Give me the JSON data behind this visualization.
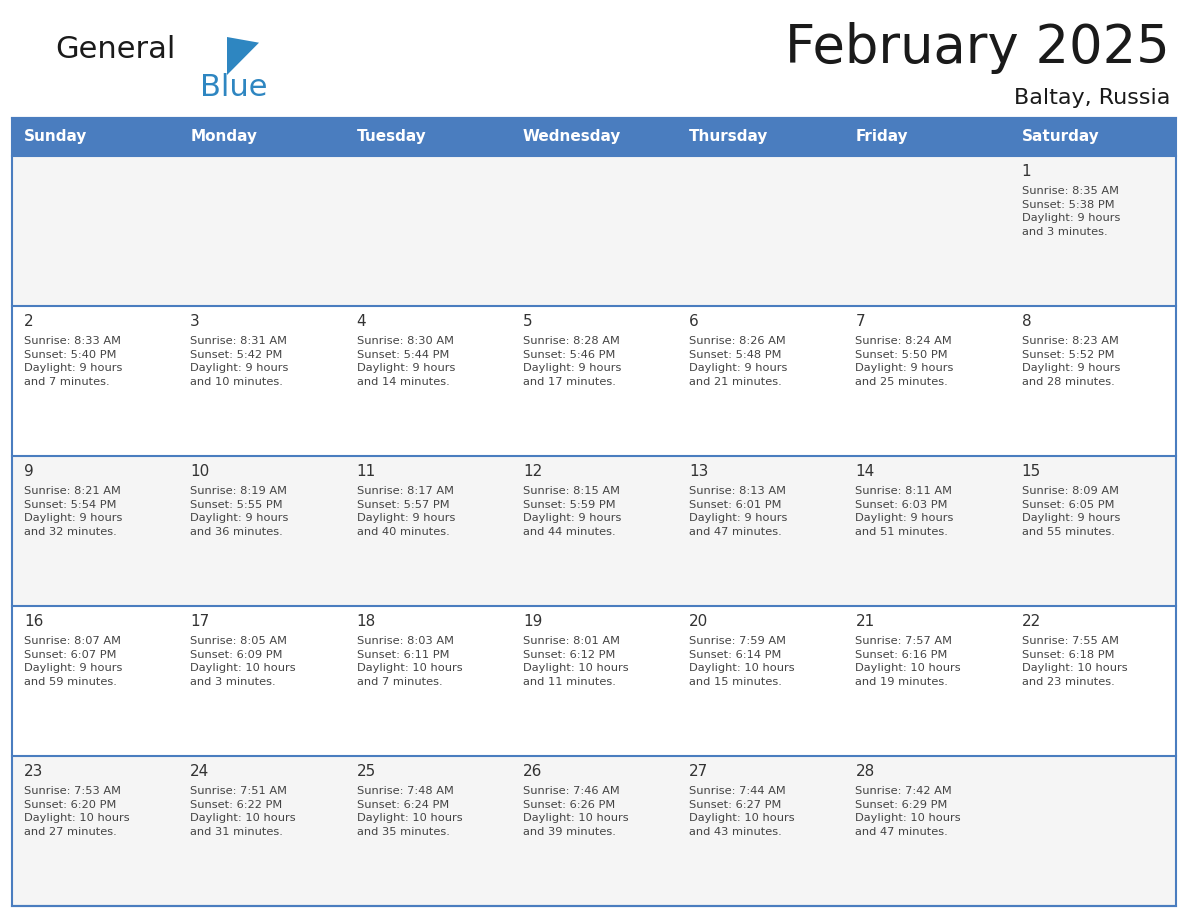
{
  "title": "February 2025",
  "subtitle": "Baltay, Russia",
  "header_bg": "#4A7DBF",
  "header_text_color": "#FFFFFF",
  "cell_bg_light": "#F5F5F5",
  "cell_bg_white": "#FFFFFF",
  "grid_line_color": "#4A7DBF",
  "day_names": [
    "Sunday",
    "Monday",
    "Tuesday",
    "Wednesday",
    "Thursday",
    "Friday",
    "Saturday"
  ],
  "title_color": "#1a1a1a",
  "subtitle_color": "#1a1a1a",
  "day_number_color": "#333333",
  "cell_text_color": "#444444",
  "logo_black": "#1a1a1a",
  "logo_blue": "#2E86C1",
  "logo_triangle": "#2E86C1",
  "calendar": [
    [
      {
        "day": 0,
        "info": ""
      },
      {
        "day": 0,
        "info": ""
      },
      {
        "day": 0,
        "info": ""
      },
      {
        "day": 0,
        "info": ""
      },
      {
        "day": 0,
        "info": ""
      },
      {
        "day": 0,
        "info": ""
      },
      {
        "day": 1,
        "info": "Sunrise: 8:35 AM\nSunset: 5:38 PM\nDaylight: 9 hours\nand 3 minutes."
      }
    ],
    [
      {
        "day": 2,
        "info": "Sunrise: 8:33 AM\nSunset: 5:40 PM\nDaylight: 9 hours\nand 7 minutes."
      },
      {
        "day": 3,
        "info": "Sunrise: 8:31 AM\nSunset: 5:42 PM\nDaylight: 9 hours\nand 10 minutes."
      },
      {
        "day": 4,
        "info": "Sunrise: 8:30 AM\nSunset: 5:44 PM\nDaylight: 9 hours\nand 14 minutes."
      },
      {
        "day": 5,
        "info": "Sunrise: 8:28 AM\nSunset: 5:46 PM\nDaylight: 9 hours\nand 17 minutes."
      },
      {
        "day": 6,
        "info": "Sunrise: 8:26 AM\nSunset: 5:48 PM\nDaylight: 9 hours\nand 21 minutes."
      },
      {
        "day": 7,
        "info": "Sunrise: 8:24 AM\nSunset: 5:50 PM\nDaylight: 9 hours\nand 25 minutes."
      },
      {
        "day": 8,
        "info": "Sunrise: 8:23 AM\nSunset: 5:52 PM\nDaylight: 9 hours\nand 28 minutes."
      }
    ],
    [
      {
        "day": 9,
        "info": "Sunrise: 8:21 AM\nSunset: 5:54 PM\nDaylight: 9 hours\nand 32 minutes."
      },
      {
        "day": 10,
        "info": "Sunrise: 8:19 AM\nSunset: 5:55 PM\nDaylight: 9 hours\nand 36 minutes."
      },
      {
        "day": 11,
        "info": "Sunrise: 8:17 AM\nSunset: 5:57 PM\nDaylight: 9 hours\nand 40 minutes."
      },
      {
        "day": 12,
        "info": "Sunrise: 8:15 AM\nSunset: 5:59 PM\nDaylight: 9 hours\nand 44 minutes."
      },
      {
        "day": 13,
        "info": "Sunrise: 8:13 AM\nSunset: 6:01 PM\nDaylight: 9 hours\nand 47 minutes."
      },
      {
        "day": 14,
        "info": "Sunrise: 8:11 AM\nSunset: 6:03 PM\nDaylight: 9 hours\nand 51 minutes."
      },
      {
        "day": 15,
        "info": "Sunrise: 8:09 AM\nSunset: 6:05 PM\nDaylight: 9 hours\nand 55 minutes."
      }
    ],
    [
      {
        "day": 16,
        "info": "Sunrise: 8:07 AM\nSunset: 6:07 PM\nDaylight: 9 hours\nand 59 minutes."
      },
      {
        "day": 17,
        "info": "Sunrise: 8:05 AM\nSunset: 6:09 PM\nDaylight: 10 hours\nand 3 minutes."
      },
      {
        "day": 18,
        "info": "Sunrise: 8:03 AM\nSunset: 6:11 PM\nDaylight: 10 hours\nand 7 minutes."
      },
      {
        "day": 19,
        "info": "Sunrise: 8:01 AM\nSunset: 6:12 PM\nDaylight: 10 hours\nand 11 minutes."
      },
      {
        "day": 20,
        "info": "Sunrise: 7:59 AM\nSunset: 6:14 PM\nDaylight: 10 hours\nand 15 minutes."
      },
      {
        "day": 21,
        "info": "Sunrise: 7:57 AM\nSunset: 6:16 PM\nDaylight: 10 hours\nand 19 minutes."
      },
      {
        "day": 22,
        "info": "Sunrise: 7:55 AM\nSunset: 6:18 PM\nDaylight: 10 hours\nand 23 minutes."
      }
    ],
    [
      {
        "day": 23,
        "info": "Sunrise: 7:53 AM\nSunset: 6:20 PM\nDaylight: 10 hours\nand 27 minutes."
      },
      {
        "day": 24,
        "info": "Sunrise: 7:51 AM\nSunset: 6:22 PM\nDaylight: 10 hours\nand 31 minutes."
      },
      {
        "day": 25,
        "info": "Sunrise: 7:48 AM\nSunset: 6:24 PM\nDaylight: 10 hours\nand 35 minutes."
      },
      {
        "day": 26,
        "info": "Sunrise: 7:46 AM\nSunset: 6:26 PM\nDaylight: 10 hours\nand 39 minutes."
      },
      {
        "day": 27,
        "info": "Sunrise: 7:44 AM\nSunset: 6:27 PM\nDaylight: 10 hours\nand 43 minutes."
      },
      {
        "day": 28,
        "info": "Sunrise: 7:42 AM\nSunset: 6:29 PM\nDaylight: 10 hours\nand 47 minutes."
      },
      {
        "day": 0,
        "info": ""
      }
    ]
  ]
}
